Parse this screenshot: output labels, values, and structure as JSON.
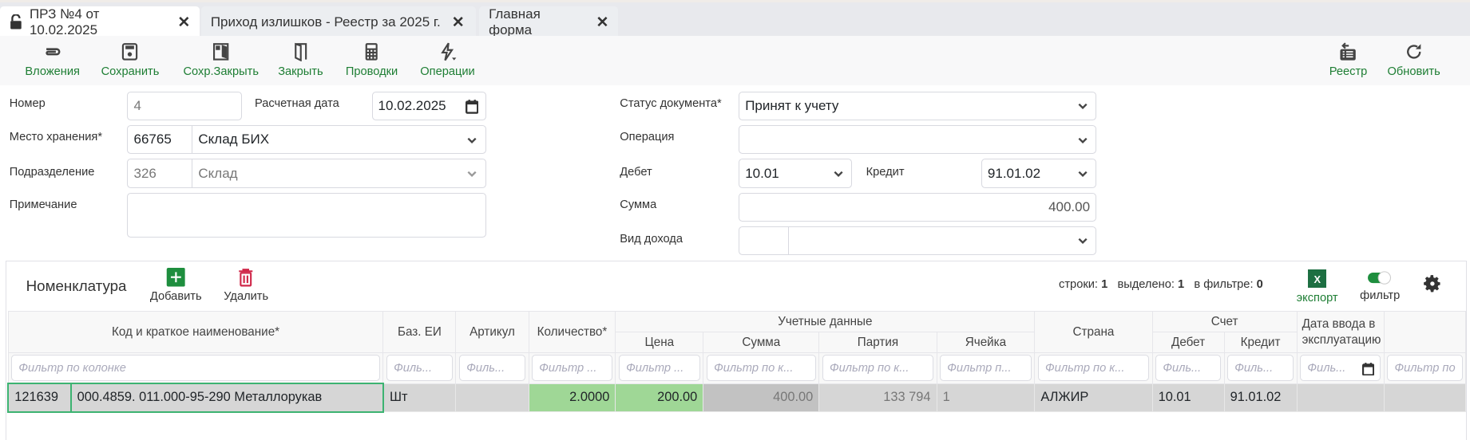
{
  "tabs": [
    {
      "label": "ПРЗ №4 от 10.02.2025",
      "active": true,
      "icon": "lock-icon"
    },
    {
      "label": "Приход излишков - Реестр за 2025 г."
    },
    {
      "label": "Главная форма"
    }
  ],
  "toolbar": {
    "left": [
      "Вложения",
      "Сохранить",
      "Сохр.Закрыть",
      "Закрыть",
      "Проводки",
      "Операции"
    ],
    "right": [
      "Реестр",
      "Обновить"
    ],
    "accent": "#1e7e34"
  },
  "form": {
    "number_label": "Номер",
    "number": "4",
    "calc_date_label": "Расчетная дата",
    "calc_date": "10.02.2025",
    "storage_label": "Место хранения*",
    "storage_code": "66765",
    "storage_name": "Склад БИХ",
    "division_label": "Подразделение",
    "division_code": "326",
    "division_name": "Склад",
    "note_label": "Примечание",
    "note": "",
    "status_label": "Статус документа*",
    "status": "Принят к учету",
    "operation_label": "Операция",
    "operation": "",
    "debit_label": "Дебет",
    "debit": "10.01",
    "credit_label": "Кредит",
    "credit": "91.01.02",
    "sum_label": "Сумма",
    "sum": "400.00",
    "income_label": "Вид дохода",
    "income": ""
  },
  "grid": {
    "title": "Номенклатура",
    "add": "Добавить",
    "delete": "Удалить",
    "rows_label": "строки:",
    "rows": "1",
    "selected_label": "выделено:",
    "selected": "1",
    "filtered_label": "в фильтре:",
    "filtered": "0",
    "export": "экспорт",
    "filter": "фильтр",
    "filter_on": true,
    "headers": {
      "name": "Код и краткое наименование*",
      "ei": "Баз. ЕИ",
      "article": "Артикул",
      "qty": "Количество*",
      "group1": "Учетные данные",
      "price": "Цена",
      "sum": "Сумма",
      "party": "Партия",
      "cell": "Ячейка",
      "country": "Страна",
      "group2": "Счет",
      "debit": "Дебет",
      "credit": "Кредит",
      "date": "Дата ввода в эксплуатацию"
    },
    "filters": {
      "name": "Фильтр по колонке",
      "ei": "Филь...",
      "article": "Филь...",
      "qty": "Фильтр ...",
      "price": "Фильтр ...",
      "sum": "Фильтр по к...",
      "party": "Фильтр по к...",
      "cell": "Фильтр п...",
      "country": "Фильтр по к...",
      "debit": "Филь...",
      "credit": "Филь...",
      "date": "Филь...",
      "extra": "Фильтр по"
    },
    "rows_data": [
      {
        "code": "121639",
        "name": "000.4859. 011.000-95-290 Металлорукав",
        "ei": "Шт",
        "article": "",
        "qty": "2.0000",
        "price": "200.00",
        "sum": "400.00",
        "party": "133 794",
        "cell": "1",
        "country": "АЛЖИР",
        "debit": "10.01",
        "credit": "91.01.02",
        "date": "",
        "extra": ""
      }
    ]
  }
}
